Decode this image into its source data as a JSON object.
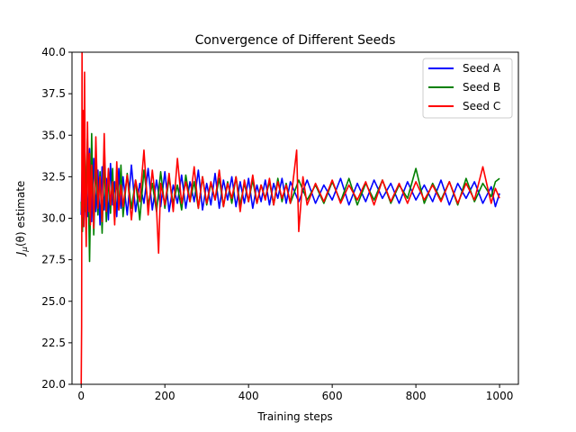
{
  "chart_data": {
    "type": "line",
    "title": "Convergence of Different Seeds",
    "xlabel": "Training steps",
    "ylabel_prefix": "J",
    "ylabel_sub": "μ",
    "ylabel_suffix": "(θ) estimate",
    "xlim": [
      -22,
      1045
    ],
    "ylim": [
      20.0,
      40.0
    ],
    "xticks": [
      0,
      200,
      400,
      600,
      800,
      1000
    ],
    "yticks": [
      20.0,
      22.5,
      25.0,
      27.5,
      30.0,
      32.5,
      35.0,
      37.5,
      40.0
    ],
    "ytick_labels": [
      "20.0",
      "22.5",
      "25.0",
      "27.5",
      "30.0",
      "32.5",
      "35.0",
      "37.5",
      "40.0"
    ],
    "legend_position": "top-right",
    "series": [
      {
        "name": "Seed A",
        "color": "#0000ff",
        "x": [
          0,
          3,
          6,
          10,
          15,
          20,
          25,
          30,
          35,
          40,
          45,
          50,
          55,
          60,
          65,
          70,
          75,
          80,
          85,
          90,
          95,
          100,
          110,
          120,
          130,
          140,
          150,
          160,
          170,
          180,
          190,
          200,
          210,
          220,
          230,
          240,
          250,
          260,
          270,
          280,
          290,
          300,
          310,
          320,
          330,
          340,
          350,
          360,
          370,
          380,
          390,
          400,
          410,
          420,
          430,
          440,
          450,
          460,
          470,
          480,
          490,
          500,
          520,
          540,
          560,
          580,
          600,
          620,
          640,
          660,
          680,
          700,
          720,
          740,
          760,
          780,
          800,
          820,
          840,
          860,
          880,
          900,
          920,
          940,
          960,
          980,
          990,
          1000
        ],
        "y": [
          30.2,
          33.8,
          29.5,
          32.6,
          30.1,
          34.2,
          29.8,
          33.6,
          30.4,
          32.9,
          29.6,
          33.1,
          30.5,
          32.4,
          29.9,
          33.3,
          30.8,
          32.2,
          30.1,
          33.0,
          30.6,
          32.5,
          30.2,
          33.2,
          30.4,
          32.1,
          30.9,
          33.0,
          30.5,
          32.3,
          30.7,
          32.8,
          30.4,
          32.0,
          30.9,
          32.6,
          30.6,
          32.2,
          31.0,
          32.9,
          30.5,
          32.1,
          30.8,
          32.7,
          30.6,
          32.3,
          31.1,
          32.5,
          30.7,
          32.2,
          30.9,
          32.4,
          30.6,
          32.0,
          31.0,
          32.3,
          30.8,
          32.1,
          31.2,
          32.4,
          30.9,
          32.2,
          31.0,
          32.3,
          30.9,
          32.0,
          31.1,
          32.4,
          30.8,
          32.1,
          31.0,
          32.3,
          31.2,
          32.1,
          30.9,
          32.2,
          31.1,
          32.0,
          31.0,
          32.3,
          30.8,
          32.1,
          31.2,
          32.2,
          30.9,
          31.9,
          30.7,
          31.5
        ]
      },
      {
        "name": "Seed B",
        "color": "#008000",
        "x": [
          0,
          3,
          6,
          10,
          15,
          20,
          25,
          30,
          35,
          40,
          45,
          50,
          55,
          60,
          65,
          70,
          75,
          80,
          85,
          90,
          95,
          100,
          110,
          120,
          130,
          140,
          150,
          160,
          170,
          180,
          190,
          200,
          210,
          220,
          230,
          240,
          250,
          260,
          270,
          280,
          290,
          300,
          310,
          320,
          330,
          340,
          350,
          360,
          370,
          380,
          390,
          400,
          410,
          420,
          430,
          440,
          450,
          460,
          470,
          480,
          490,
          500,
          520,
          540,
          560,
          580,
          600,
          620,
          640,
          660,
          680,
          700,
          720,
          740,
          760,
          780,
          800,
          820,
          840,
          860,
          880,
          900,
          920,
          940,
          960,
          980,
          990,
          1000
        ],
        "y": [
          31.0,
          29.2,
          33.5,
          30.4,
          34.8,
          27.4,
          35.1,
          29.0,
          33.4,
          30.2,
          32.8,
          29.1,
          33.6,
          29.8,
          32.5,
          30.3,
          33.0,
          29.9,
          32.6,
          30.5,
          33.2,
          30.1,
          32.7,
          30.6,
          32.3,
          29.9,
          32.9,
          30.8,
          32.1,
          30.4,
          32.8,
          30.6,
          32.4,
          30.9,
          32.0,
          30.5,
          32.6,
          31.0,
          32.2,
          30.6,
          32.5,
          30.8,
          32.1,
          31.1,
          32.4,
          30.7,
          32.2,
          30.9,
          32.5,
          30.8,
          32.1,
          31.0,
          32.3,
          30.9,
          32.0,
          31.2,
          32.2,
          30.8,
          32.4,
          31.0,
          32.1,
          30.9,
          32.3,
          31.1,
          32.0,
          30.9,
          32.2,
          31.0,
          32.4,
          30.8,
          32.1,
          31.1,
          32.3,
          30.9,
          32.0,
          31.2,
          33.0,
          30.9,
          32.1,
          31.1,
          32.2,
          30.8,
          32.4,
          31.0,
          32.1,
          31.3,
          32.2,
          32.4
        ]
      },
      {
        "name": "Seed C",
        "color": "#ff0000",
        "x": [
          0,
          1,
          2,
          3,
          4,
          6,
          8,
          10,
          12,
          15,
          18,
          20,
          22,
          25,
          30,
          35,
          40,
          45,
          50,
          55,
          60,
          65,
          70,
          75,
          80,
          85,
          90,
          95,
          100,
          110,
          120,
          130,
          140,
          150,
          160,
          170,
          180,
          185,
          190,
          200,
          210,
          220,
          230,
          240,
          250,
          260,
          270,
          280,
          290,
          300,
          310,
          320,
          330,
          340,
          350,
          360,
          370,
          380,
          390,
          400,
          410,
          420,
          430,
          440,
          450,
          460,
          470,
          480,
          490,
          500,
          510,
          515,
          520,
          530,
          540,
          560,
          580,
          600,
          620,
          640,
          660,
          680,
          700,
          720,
          740,
          760,
          780,
          800,
          820,
          840,
          860,
          880,
          900,
          920,
          940,
          960,
          980,
          990,
          1000
        ],
        "y": [
          20.0,
          23.5,
          40.0,
          30.1,
          36.5,
          29.5,
          38.8,
          31.2,
          28.3,
          35.8,
          30.4,
          33.9,
          29.6,
          33.2,
          29.4,
          34.9,
          30.6,
          32.5,
          29.8,
          35.1,
          30.4,
          33.0,
          30.8,
          32.2,
          29.6,
          33.4,
          30.5,
          32.0,
          30.7,
          32.6,
          29.9,
          32.3,
          31.0,
          34.1,
          30.2,
          32.9,
          30.6,
          27.9,
          32.1,
          30.8,
          32.7,
          30.4,
          33.6,
          30.9,
          32.2,
          31.0,
          33.1,
          30.6,
          32.5,
          30.9,
          32.2,
          31.1,
          32.9,
          30.7,
          32.1,
          31.2,
          32.5,
          30.4,
          32.3,
          31.0,
          32.6,
          30.9,
          32.0,
          31.1,
          32.4,
          30.8,
          32.2,
          31.2,
          32.0,
          30.9,
          33.0,
          34.1,
          29.2,
          32.5,
          30.8,
          32.1,
          31.0,
          32.3,
          30.9,
          32.0,
          31.1,
          32.2,
          30.8,
          32.3,
          31.0,
          32.1,
          30.9,
          32.2,
          31.1,
          32.0,
          31.0,
          32.2,
          30.9,
          32.1,
          31.1,
          33.1,
          30.9,
          31.8,
          31.2
        ]
      }
    ]
  }
}
